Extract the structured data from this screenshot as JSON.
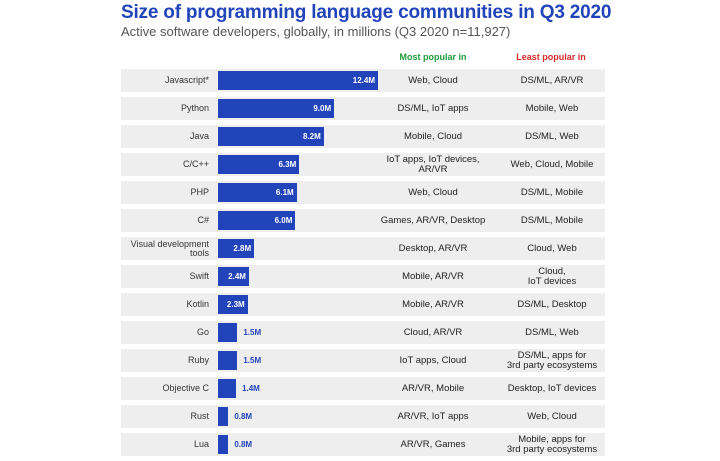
{
  "header": {
    "title": "Size of programming language communities in Q3 2020",
    "subtitle": "Active software developers, globally, in millions (Q3 2020 n=11,927)",
    "col_most": "Most popular in",
    "col_least": "Least popular in"
  },
  "colors": {
    "bar": "#2244bb",
    "most": "#1f9a3a",
    "least": "#d62a2a"
  },
  "chart_data": {
    "type": "bar",
    "orientation": "horizontal",
    "title": "Size of programming language communities in Q3 2020",
    "subtitle": "Active software developers, globally, in millions (Q3 2020 n=11,927)",
    "xlabel": "",
    "ylabel": "",
    "unit": "M",
    "xlim": [
      0,
      12.4
    ],
    "grid": false,
    "legend": "none",
    "categories": [
      "Javascript*",
      "Python",
      "Java",
      "C/C++",
      "PHP",
      "C#",
      "Visual development\ntools",
      "Swift",
      "Kotlin",
      "Go",
      "Ruby",
      "Objective C",
      "Rust",
      "Lua"
    ],
    "values": [
      12.4,
      9.0,
      8.2,
      6.3,
      6.1,
      6.0,
      2.8,
      2.4,
      2.3,
      1.5,
      1.5,
      1.4,
      0.8,
      0.8
    ],
    "labels": [
      "12.4M",
      "9.0M",
      "8.2M",
      "6.3M",
      "6.1M",
      "6.0M",
      "2.8M",
      "2.4M",
      "2.3M",
      "1.5M",
      "1.5M",
      "1.4M",
      "0.8M",
      "0.8M"
    ],
    "most_popular_in": [
      "Web, Cloud",
      "DS/ML, IoT apps",
      "Mobile, Cloud",
      "IoT apps, IoT devices,\nAR/VR",
      "Web, Cloud",
      "Games, AR/VR, Desktop",
      "Desktop, AR/VR",
      "Mobile, AR/VR",
      "Mobile, AR/VR",
      "Cloud, AR/VR",
      "IoT apps, Cloud",
      "AR/VR, Mobile",
      "AR/VR, IoT apps",
      "AR/VR, Games"
    ],
    "least_popular_in": [
      "DS/ML, AR/VR",
      "Mobile, Web",
      "DS/ML, Web",
      "Web, Cloud, Mobile",
      "DS/ML, Mobile",
      "DS/ML, Mobile",
      "Cloud, Web",
      "Cloud,\nIoT devices",
      "DS/ML, Desktop",
      "DS/ML, Web",
      "DS/ML, apps for\n3rd party ecosystems",
      "Desktop, IoT devices",
      "Web, Cloud",
      "Mobile, apps for\n3rd party ecosystems"
    ]
  }
}
